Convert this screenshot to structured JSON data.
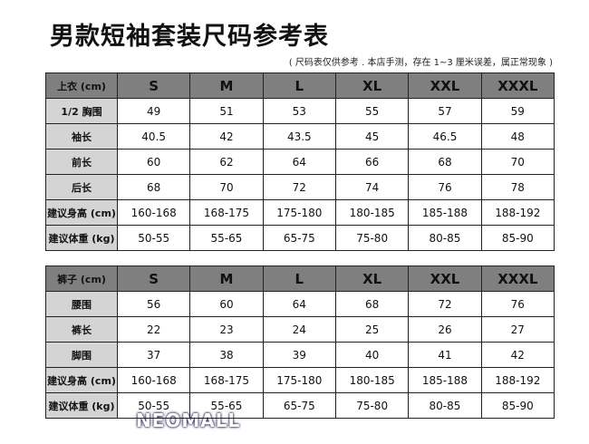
{
  "header": {
    "title": "男款短袖套装尺码参考表",
    "note": "( 尺码表仅供参考 . 本店手测，存在 1~3 厘米误差，属正常现象 )"
  },
  "tables": [
    {
      "header": [
        "上衣 (cm)",
        "S",
        "M",
        "L",
        "XL",
        "XXL",
        "XXXL"
      ],
      "rows": [
        [
          "1/2 胸围",
          "49",
          "51",
          "53",
          "55",
          "57",
          "59"
        ],
        [
          "袖长",
          "40.5",
          "42",
          "43.5",
          "45",
          "46.5",
          "48"
        ],
        [
          "前长",
          "60",
          "62",
          "64",
          "66",
          "68",
          "70"
        ],
        [
          "后长",
          "68",
          "70",
          "72",
          "74",
          "76",
          "78"
        ],
        [
          "建议身高 (cm)",
          "160-168",
          "168-175",
          "175-180",
          "180-185",
          "185-188",
          "188-192"
        ],
        [
          "建议体重 (kg)",
          "50-55",
          "55-65",
          "65-75",
          "75-80",
          "80-85",
          "85-90"
        ]
      ]
    },
    {
      "header": [
        "裤子 (cm)",
        "S",
        "M",
        "L",
        "XL",
        "XXL",
        "XXXL"
      ],
      "rows": [
        [
          "腰围",
          "56",
          "60",
          "64",
          "68",
          "72",
          "76"
        ],
        [
          "裤长",
          "22",
          "23",
          "24",
          "25",
          "26",
          "27"
        ],
        [
          "脚围",
          "37",
          "38",
          "39",
          "40",
          "41",
          "42"
        ],
        [
          "建议身高 (cm)",
          "160-168",
          "168-175",
          "175-180",
          "180-185",
          "185-188",
          "188-192"
        ],
        [
          "建议体重 (kg)",
          "50-55",
          "55-65",
          "65-75",
          "75-80",
          "80-85",
          "85-90"
        ]
      ]
    }
  ],
  "watermark": "NEOMALL"
}
